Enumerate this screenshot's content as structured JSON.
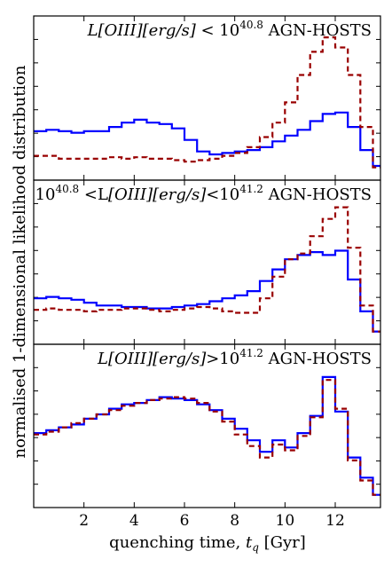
{
  "chart_data": {
    "type": "line",
    "layout": "3 stacked panels, shared x-axis",
    "xlabel": "quenching time, $t_q$ [Gyr]",
    "ylabel": "normalised 1-dimensional likelihood distribution",
    "xlim": [
      0,
      13.8
    ],
    "xticks": [
      2,
      4,
      6,
      8,
      10,
      12
    ],
    "xtick_labels": [
      "2",
      "4",
      "6",
      "8",
      "10",
      "12"
    ],
    "grid": false,
    "legend": "none",
    "series_styles": [
      {
        "color": "#0000ff",
        "linestyle": "solid",
        "drawstyle": "steps"
      },
      {
        "color": "#990000",
        "linestyle": "dashed",
        "drawstyle": "steps"
      }
    ],
    "panels": [
      {
        "label_parts": [
          "L",
          "[OIII][erg/s]",
          " < 10",
          "40.8",
          "AGN-HOSTS"
        ],
        "label_text": "L[OIII][erg/s] < 10^40.8  AGN-HOSTS",
        "ylim": [
          0,
          1
        ],
        "x": [
          0.0,
          0.5,
          1.0,
          1.5,
          2.0,
          2.5,
          3.0,
          3.5,
          4.0,
          4.5,
          5.0,
          5.5,
          6.0,
          6.5,
          7.0,
          7.5,
          8.0,
          8.5,
          9.0,
          9.5,
          10.0,
          10.5,
          11.0,
          11.5,
          12.0,
          12.5,
          13.0,
          13.5
        ],
        "series": [
          {
            "values": [
              0.27,
              0.28,
              0.27,
              0.26,
              0.27,
              0.27,
              0.3,
              0.33,
              0.35,
              0.33,
              0.32,
              0.29,
              0.21,
              0.13,
              0.11,
              0.12,
              0.13,
              0.14,
              0.16,
              0.2,
              0.24,
              0.28,
              0.34,
              0.39,
              0.4,
              0.3,
              0.14,
              0.03
            ]
          },
          {
            "values": [
              0.1,
              0.1,
              0.08,
              0.08,
              0.08,
              0.08,
              0.09,
              0.08,
              0.09,
              0.08,
              0.08,
              0.07,
              0.06,
              0.07,
              0.08,
              0.1,
              0.12,
              0.16,
              0.23,
              0.33,
              0.47,
              0.66,
              0.82,
              0.92,
              0.85,
              0.66,
              0.3,
              0.02
            ]
          }
        ]
      },
      {
        "label_parts": [
          "10",
          "40.8",
          " <L",
          "[OIII][erg/s]",
          "<10",
          "41.2",
          "AGN-HOSTS"
        ],
        "label_text": "10^40.8 < L[OIII][erg/s] < 10^41.2  AGN-HOSTS",
        "ylim": [
          0,
          1
        ],
        "x": [
          0.0,
          0.5,
          1.0,
          1.5,
          2.0,
          2.5,
          3.0,
          3.5,
          4.0,
          4.5,
          5.0,
          5.5,
          6.0,
          6.5,
          7.0,
          7.5,
          8.0,
          8.5,
          9.0,
          9.5,
          10.0,
          10.5,
          11.0,
          11.5,
          12.0,
          12.5,
          13.0,
          13.5
        ],
        "series": [
          {
            "values": [
              0.25,
              0.26,
              0.25,
              0.24,
              0.22,
              0.2,
              0.2,
              0.19,
              0.19,
              0.18,
              0.18,
              0.19,
              0.2,
              0.21,
              0.23,
              0.25,
              0.27,
              0.3,
              0.37,
              0.45,
              0.52,
              0.55,
              0.57,
              0.55,
              0.58,
              0.38,
              0.16,
              0.02
            ]
          },
          {
            "values": [
              0.17,
              0.18,
              0.17,
              0.17,
              0.16,
              0.17,
              0.17,
              0.18,
              0.18,
              0.17,
              0.16,
              0.17,
              0.18,
              0.19,
              0.18,
              0.16,
              0.15,
              0.15,
              0.25,
              0.4,
              0.52,
              0.56,
              0.68,
              0.8,
              0.88,
              0.6,
              0.2,
              0.02
            ]
          }
        ]
      },
      {
        "label_parts": [
          "L",
          "[OIII][erg/s]",
          ">10",
          "41.2",
          "AGN-HOSTS"
        ],
        "label_text": "L[OIII][erg/s] > 10^41.2  AGN-HOSTS",
        "ylim": [
          0,
          1
        ],
        "x": [
          0.0,
          0.5,
          1.0,
          1.5,
          2.0,
          2.5,
          3.0,
          3.5,
          4.0,
          4.5,
          5.0,
          5.5,
          6.0,
          6.5,
          7.0,
          7.5,
          8.0,
          8.5,
          9.0,
          9.5,
          10.0,
          10.5,
          11.0,
          11.5,
          12.0,
          12.5,
          13.0,
          13.5
        ],
        "series": [
          {
            "values": [
              0.45,
              0.47,
              0.49,
              0.51,
              0.55,
              0.58,
              0.62,
              0.65,
              0.66,
              0.68,
              0.7,
              0.69,
              0.68,
              0.65,
              0.61,
              0.55,
              0.48,
              0.4,
              0.32,
              0.4,
              0.35,
              0.45,
              0.57,
              0.84,
              0.6,
              0.28,
              0.14,
              0.02
            ]
          },
          {
            "values": [
              0.44,
              0.46,
              0.49,
              0.52,
              0.55,
              0.58,
              0.61,
              0.64,
              0.66,
              0.68,
              0.69,
              0.7,
              0.69,
              0.66,
              0.6,
              0.53,
              0.44,
              0.36,
              0.28,
              0.37,
              0.33,
              0.43,
              0.56,
              0.82,
              0.62,
              0.26,
              0.12,
              0.02
            ]
          }
        ]
      }
    ]
  }
}
